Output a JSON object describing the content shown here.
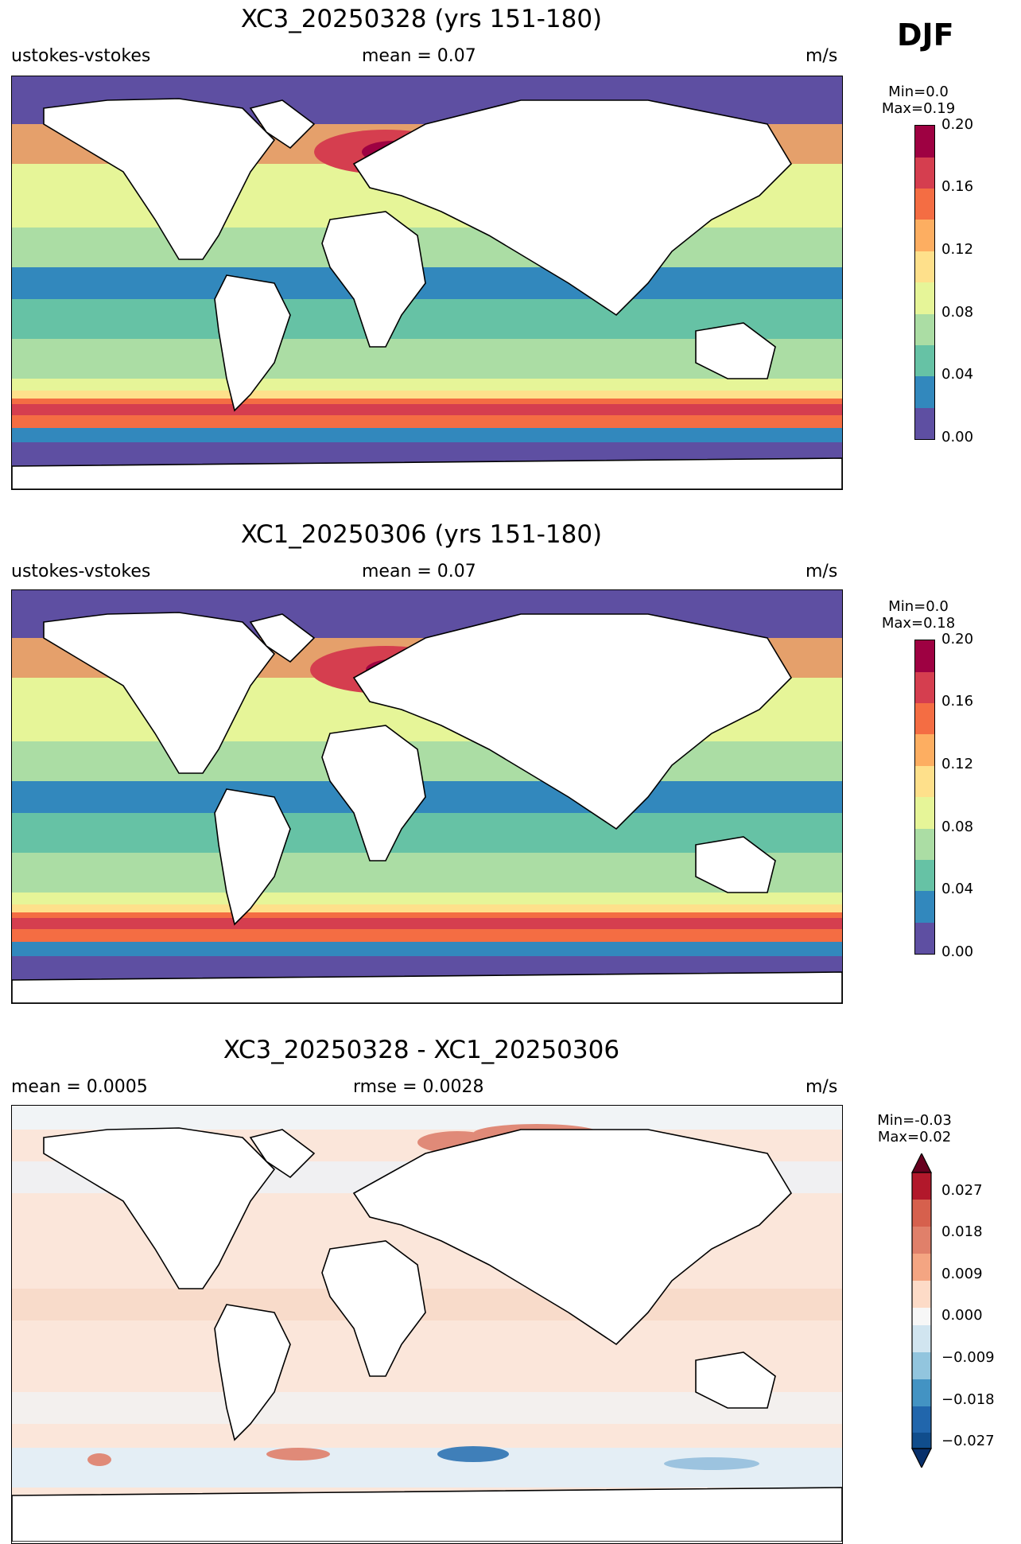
{
  "season": "DJF",
  "panels": [
    {
      "title": "XC3_20250328 (yrs 151-180)",
      "left_label": "ustokes-vstokes",
      "center_label": "mean = 0.07",
      "units": "m/s",
      "minmax": [
        "Min=0.0",
        "Max=0.19"
      ],
      "colorbar_ticks": [
        "0.20",
        "0.16",
        "0.12",
        "0.08",
        "0.04",
        "0.00"
      ],
      "palette": [
        "#5e4fa2",
        "#3288bd",
        "#66c2a5",
        "#abdda4",
        "#e6f598",
        "#fee08b",
        "#fdae61",
        "#f46d43",
        "#d53e4f",
        "#9e0142"
      ]
    },
    {
      "title": "XC1_20250306 (yrs 151-180)",
      "left_label": "ustokes-vstokes",
      "center_label": "mean = 0.07",
      "units": "m/s",
      "minmax": [
        "Min=0.0",
        "Max=0.18"
      ],
      "colorbar_ticks": [
        "0.20",
        "0.16",
        "0.12",
        "0.08",
        "0.04",
        "0.00"
      ],
      "palette": [
        "#5e4fa2",
        "#3288bd",
        "#66c2a5",
        "#abdda4",
        "#e6f598",
        "#fee08b",
        "#fdae61",
        "#f46d43",
        "#d53e4f",
        "#9e0142"
      ]
    },
    {
      "title": "XC3_20250328 - XC1_20250306",
      "left_label": "mean = 0.0005",
      "center_label": "rmse = 0.0028",
      "units": "m/s",
      "minmax": [
        "Min=-0.03",
        "Max=0.02"
      ],
      "colorbar_ticks": [
        "0.027",
        "0.018",
        "0.009",
        "0.000",
        "−0.009",
        "−0.018",
        "−0.027"
      ],
      "palette": [
        "#08306b",
        "#2166ac",
        "#4393c3",
        "#92c5de",
        "#d1e5f0",
        "#f7f7f7",
        "#fddbc7",
        "#f4a582",
        "#d6604d",
        "#b2182b",
        "#67001f"
      ]
    }
  ]
}
